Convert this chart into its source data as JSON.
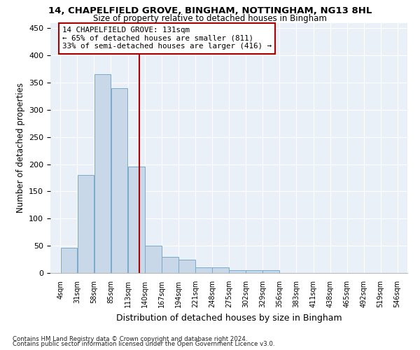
{
  "title1": "14, CHAPELFIELD GROVE, BINGHAM, NOTTINGHAM, NG13 8HL",
  "title2": "Size of property relative to detached houses in Bingham",
  "xlabel": "Distribution of detached houses by size in Bingham",
  "ylabel": "Number of detached properties",
  "bins": [
    4,
    31,
    58,
    85,
    113,
    140,
    167,
    194,
    221,
    248,
    275,
    302,
    329,
    356,
    383,
    411,
    438,
    465,
    492,
    519,
    546
  ],
  "counts": [
    46,
    180,
    365,
    340,
    195,
    50,
    30,
    25,
    10,
    10,
    5,
    5,
    5,
    0,
    0,
    0,
    0,
    0,
    0,
    0
  ],
  "bar_color": "#c8d8e8",
  "bar_edge_color": "#7aaac8",
  "vline_x": 131,
  "vline_color": "#aa0000",
  "annotation_box_color": "#aa0000",
  "annotation_lines": [
    "14 CHAPELFIELD GROVE: 131sqm",
    "← 65% of detached houses are smaller (811)",
    "33% of semi-detached houses are larger (416) →"
  ],
  "ylim": [
    0,
    460
  ],
  "yticks": [
    0,
    50,
    100,
    150,
    200,
    250,
    300,
    350,
    400,
    450
  ],
  "background_color": "#eaf0f8",
  "grid_color": "#ffffff",
  "footnote1": "Contains HM Land Registry data © Crown copyright and database right 2024.",
  "footnote2": "Contains public sector information licensed under the Open Government Licence v3.0."
}
